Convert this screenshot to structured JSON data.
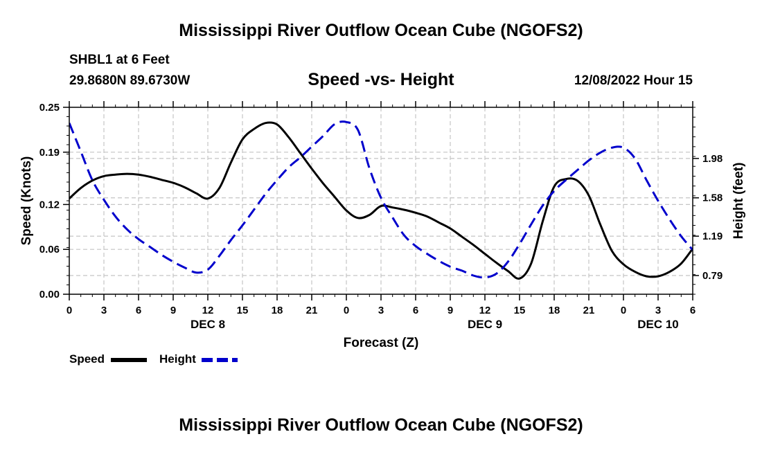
{
  "header": {
    "title": "Mississippi River Outflow Ocean Cube (NGOFS2)",
    "station": "SHBL1 at 6 Feet",
    "coords": "29.8680N  89.6730W",
    "subtitle": "Speed -vs- Height",
    "datetime": "12/08/2022 Hour 15"
  },
  "footer": {
    "title": "Mississippi River Outflow Ocean Cube (NGOFS2)"
  },
  "chart_data": {
    "type": "line",
    "title": "Speed -vs- Height",
    "xlabel": "Forecast (Z)",
    "ylabel_left": "Speed (Knots)",
    "ylabel_right": "Height (feet)",
    "x_range": [
      0,
      54
    ],
    "x_ticks": [
      0,
      3,
      6,
      9,
      12,
      15,
      18,
      21,
      24,
      27,
      30,
      33,
      36,
      39,
      42,
      45,
      48,
      51,
      54
    ],
    "x_tick_labels": [
      "0",
      "3",
      "6",
      "9",
      "12",
      "15",
      "18",
      "21",
      "0",
      "3",
      "6",
      "9",
      "12",
      "15",
      "18",
      "21",
      "0",
      "3",
      "6"
    ],
    "day_labels": [
      {
        "x": 12,
        "label": "DEC 8"
      },
      {
        "x": 36,
        "label": "DEC 9"
      },
      {
        "x": 51,
        "label": "DEC 10"
      }
    ],
    "y_left_range": [
      0,
      0.25
    ],
    "y_left_ticks": [
      0.0,
      0.06,
      0.12,
      0.19,
      0.25
    ],
    "y_left_tick_labels": [
      "0.00",
      "0.06",
      "0.12",
      "0.19",
      "0.25"
    ],
    "y_right_range": [
      0.6,
      2.5
    ],
    "y_right_ticks": [
      0.79,
      1.19,
      1.58,
      1.98
    ],
    "y_right_tick_labels": [
      "0.79",
      "1.19",
      "1.58",
      "1.98"
    ],
    "grid": true,
    "series": [
      {
        "name": "Speed",
        "axis": "left",
        "color": "#000000",
        "style": "solid",
        "x": [
          0,
          1,
          2,
          3,
          4,
          5,
          6,
          7,
          8,
          9,
          10,
          11,
          12,
          13,
          14,
          15,
          16,
          17,
          18,
          19,
          20,
          21,
          22,
          23,
          24,
          25,
          26,
          27,
          28,
          29,
          30,
          31,
          32,
          33,
          34,
          35,
          36,
          37,
          38,
          39,
          40,
          41,
          42,
          43,
          44,
          45,
          46,
          47,
          48,
          49,
          50,
          51,
          52,
          53,
          54
        ],
        "values": [
          0.128,
          0.142,
          0.152,
          0.158,
          0.16,
          0.161,
          0.16,
          0.157,
          0.153,
          0.149,
          0.143,
          0.135,
          0.128,
          0.142,
          0.176,
          0.207,
          0.221,
          0.229,
          0.227,
          0.21,
          0.189,
          0.168,
          0.148,
          0.13,
          0.112,
          0.102,
          0.106,
          0.118,
          0.116,
          0.113,
          0.109,
          0.104,
          0.096,
          0.088,
          0.077,
          0.066,
          0.054,
          0.042,
          0.031,
          0.021,
          0.041,
          0.097,
          0.144,
          0.154,
          0.152,
          0.132,
          0.093,
          0.058,
          0.04,
          0.03,
          0.024,
          0.024,
          0.03,
          0.041,
          0.061
        ]
      },
      {
        "name": "Height",
        "axis": "right",
        "color": "#0000cc",
        "style": "dashed",
        "x": [
          0,
          1,
          2,
          3,
          4,
          5,
          6,
          7,
          8,
          9,
          10,
          11,
          12,
          13,
          14,
          15,
          16,
          17,
          18,
          19,
          20,
          21,
          22,
          23,
          24,
          25,
          26,
          27,
          28,
          29,
          30,
          31,
          32,
          33,
          34,
          35,
          36,
          37,
          38,
          39,
          40,
          41,
          42,
          43,
          44,
          45,
          46,
          47,
          48,
          49,
          50,
          51,
          52,
          53,
          54
        ],
        "values": [
          2.34,
          2.05,
          1.76,
          1.56,
          1.39,
          1.26,
          1.16,
          1.08,
          1.0,
          0.93,
          0.87,
          0.82,
          0.85,
          0.99,
          1.15,
          1.3,
          1.46,
          1.62,
          1.76,
          1.89,
          1.99,
          2.1,
          2.21,
          2.33,
          2.35,
          2.27,
          1.88,
          1.58,
          1.38,
          1.2,
          1.09,
          1.01,
          0.94,
          0.88,
          0.84,
          0.79,
          0.77,
          0.81,
          0.93,
          1.11,
          1.31,
          1.5,
          1.65,
          1.76,
          1.86,
          1.96,
          2.04,
          2.09,
          2.09,
          1.98,
          1.76,
          1.55,
          1.36,
          1.19,
          1.05
        ]
      }
    ],
    "legend": [
      {
        "label": "Speed",
        "color": "#000000",
        "style": "solid"
      },
      {
        "label": "Height",
        "color": "#0000cc",
        "style": "dashed"
      }
    ]
  }
}
